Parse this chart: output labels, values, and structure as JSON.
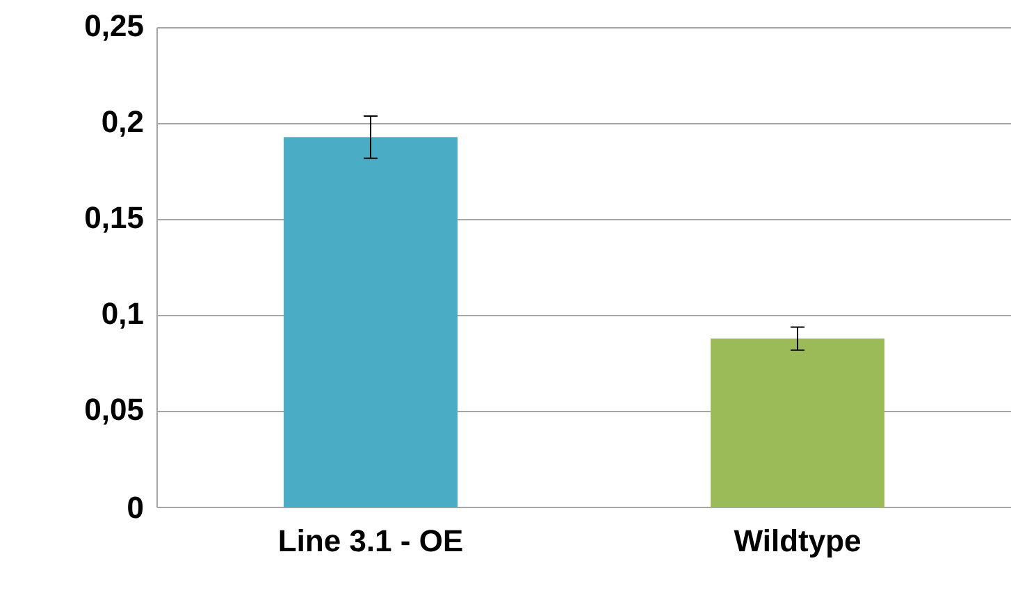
{
  "chart_data": {
    "type": "bar",
    "categories": [
      "Line 3.1 - OE",
      "Wildtype"
    ],
    "values": [
      0.193,
      0.088
    ],
    "colors": [
      "#4bacc6",
      "#9bbb59"
    ],
    "errors": [
      0.011,
      0.006
    ],
    "ylim": [
      0,
      0.25
    ],
    "yticks": [
      {
        "value": 0,
        "label": "0"
      },
      {
        "value": 0.05,
        "label": "0,05"
      },
      {
        "value": 0.1,
        "label": "0,1"
      },
      {
        "value": 0.15,
        "label": "0,15"
      },
      {
        "value": 0.2,
        "label": "0,2"
      },
      {
        "value": 0.25,
        "label": "0,25"
      }
    ],
    "grid": "y"
  }
}
